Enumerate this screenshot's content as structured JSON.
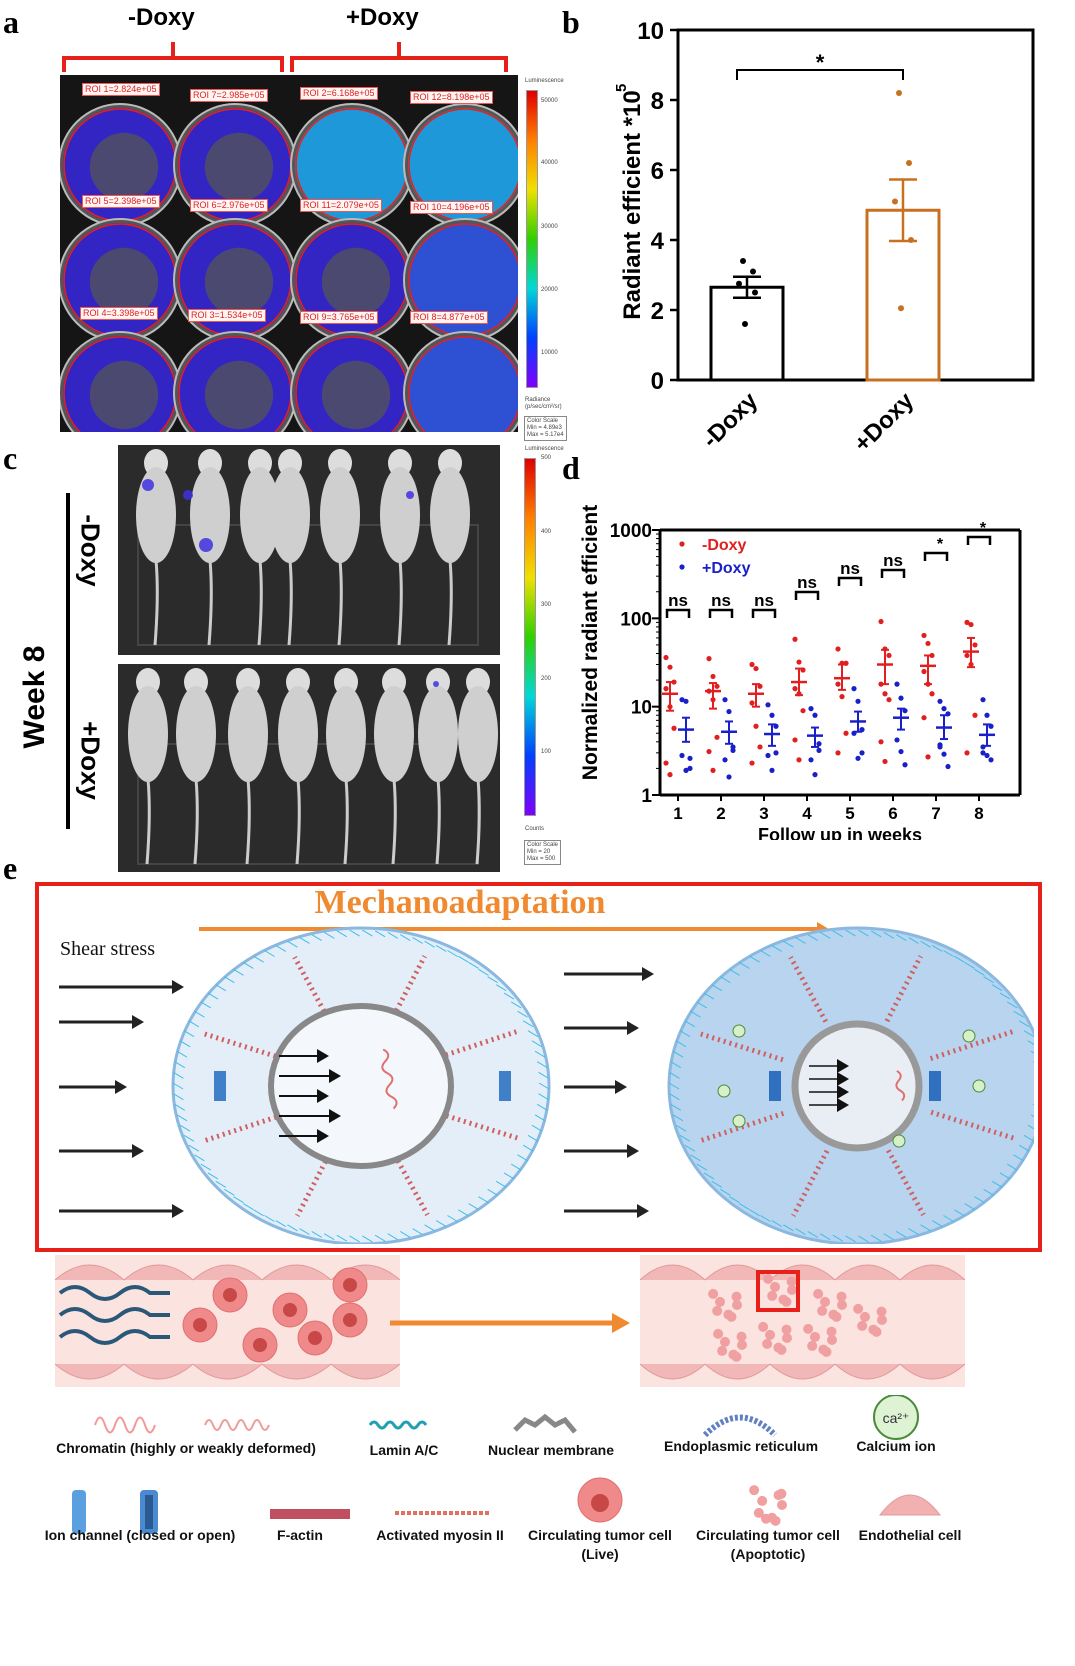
{
  "panels": {
    "a": "a",
    "b": "b",
    "c": "c",
    "d": "d",
    "e": "e"
  },
  "panel_a": {
    "groups": [
      "-Doxy",
      "+Doxy"
    ],
    "rois": [
      [
        "ROI 1=2.824e+05",
        "ROI 7=2.985e+05",
        "ROI 2=6.168e+05",
        "ROI 12=8.198e+05"
      ],
      [
        "ROI 5=2.398e+05",
        "ROI 6=2.976e+05",
        "ROI 11=2.079e+05",
        "ROI 10=4.196e+05"
      ],
      [
        "ROI 4=3.398e+05",
        "ROI 3=1.534e+05",
        "ROI 9=3.765e+05",
        "ROI 8=4.877e+05"
      ]
    ],
    "colorbar": {
      "title": "Luminescence",
      "ticks": [
        "50000",
        "40000",
        "30000",
        "20000",
        "10000"
      ],
      "unit_line1": "Radiance",
      "unit_line2": "(p/sec/cm²/sr)",
      "scale_title": "Color Scale",
      "scale_min": "Min = 4.89e3",
      "scale_max": "Max = 5.17e4"
    }
  },
  "panel_c": {
    "timepoint": "Week 8",
    "groups": [
      "-Doxy",
      "+Doxy"
    ],
    "colorbar": {
      "title": "Luminescence",
      "ticks": [
        "500",
        "400",
        "300",
        "200",
        "100"
      ],
      "unit": "Counts",
      "scale_title": "Color Scale",
      "scale_min": "Min = 20",
      "scale_max": "Max = 500"
    }
  },
  "chart_data": [
    {
      "id": "b",
      "type": "bar",
      "categories": [
        "-Doxy",
        "+Doxy"
      ],
      "values": [
        2.65,
        4.85
      ],
      "sem": [
        0.3,
        0.88
      ],
      "points": [
        [
          3.4,
          3.1,
          2.75,
          2.5,
          1.6
        ],
        [
          8.2,
          6.2,
          5.1,
          4.0,
          2.05
        ]
      ],
      "colors": [
        "#000000",
        "#c87020"
      ],
      "ylabel": "Radiant efficient *10^5",
      "ylim": [
        0,
        10
      ],
      "yticks": [
        0,
        2,
        4,
        6,
        8,
        10
      ],
      "significance": "*"
    },
    {
      "id": "d",
      "type": "scatter",
      "xlabel": "Follow up in weeks",
      "ylabel": "Normalized radiant efficient",
      "x": [
        1,
        2,
        3,
        4,
        5,
        6,
        7,
        8
      ],
      "ylog": true,
      "ylim": [
        1,
        1000
      ],
      "yticks": [
        "1",
        "10",
        "100",
        "1000"
      ],
      "legend_position": "top-left",
      "significance": [
        "ns",
        "ns",
        "ns",
        "ns",
        "ns",
        "ns",
        "*",
        "*"
      ],
      "series": [
        {
          "name": "-Doxy",
          "color": "#e02020",
          "mean": [
            14,
            15,
            14,
            19,
            21,
            30,
            29,
            42
          ],
          "sem_low": [
            9,
            9.5,
            10,
            13.5,
            15.5,
            18,
            18,
            28
          ],
          "sem_high": [
            19,
            18.5,
            18,
            27,
            30,
            44,
            38,
            60
          ],
          "points": [
            [
              36,
              28,
              19,
              16,
              10,
              5.7,
              2.3,
              1.7
            ],
            [
              35,
              22,
              17,
              15,
              12,
              4.5,
              3.1,
              1.9
            ],
            [
              30,
              27,
              17,
              11,
              6,
              3.5,
              2.3
            ],
            [
              58,
              32,
              26,
              16,
              14,
              9,
              4.2,
              2.5
            ],
            [
              45,
              31,
              31,
              18,
              13,
              5,
              3
            ],
            [
              92,
              45,
              38,
              18,
              14,
              12,
              4,
              2.4
            ],
            [
              64,
              52,
              38,
              25,
              18,
              14,
              7.5,
              2.7
            ],
            [
              90,
              85,
              50,
              38,
              30,
              8,
              3
            ]
          ]
        },
        {
          "name": "+Doxy",
          "color": "#1a20c8",
          "mean": [
            5.5,
            5.2,
            4.9,
            4.7,
            6.8,
            7.5,
            5.8,
            4.8
          ],
          "sem_low": [
            4,
            3.8,
            3.6,
            3.5,
            5.2,
            5.5,
            4.3,
            3.6
          ],
          "sem_high": [
            7.5,
            6.8,
            6.3,
            5.8,
            8.8,
            9.5,
            8,
            6.3
          ],
          "points": [
            [
              12,
              11.5,
              2.6,
              2.8,
              1.9,
              2
            ],
            [
              12,
              8.8,
              3.2,
              2.5,
              1.6,
              3.5
            ],
            [
              10.5,
              8,
              6,
              2.8,
              1.9,
              3
            ],
            [
              9.5,
              8,
              3.8,
              2.5,
              1.7,
              3.2
            ],
            [
              16,
              11.5,
              5.5,
              5,
              2.6,
              3
            ],
            [
              18,
              12.5,
              9,
              4.2,
              3.1,
              2.2
            ],
            [
              11.5,
              9.5,
              8.3,
              3.7,
              2.9,
              2.1,
              3.5
            ],
            [
              12,
              8,
              6,
              3.5,
              2.8,
              2.5,
              3
            ]
          ]
        }
      ]
    }
  ],
  "panel_e": {
    "title": "Mechanoadaptation",
    "shear_label": "Shear stress",
    "calcium_symbol": "ca²⁺",
    "legend": [
      "Chromatin (highly or weakly deformed)",
      "Lamin A/C",
      "Nuclear membrane",
      "Endoplasmic reticulum",
      "Calcium ion",
      "Ion channel (closed or open)",
      "F-actin",
      "Activated myosin II",
      "Circulating tumor cell",
      "(Live)",
      "Circulating tumor cell",
      "(Apoptotic)",
      "Endothelial cell"
    ],
    "colors": {
      "frame": "#e8201a",
      "title": "#f08a30",
      "arrow": "#f08a30",
      "cell_light": "#e4eef8",
      "cell_dark": "#b8d4ee",
      "vessel": "#fbe3e0"
    }
  }
}
